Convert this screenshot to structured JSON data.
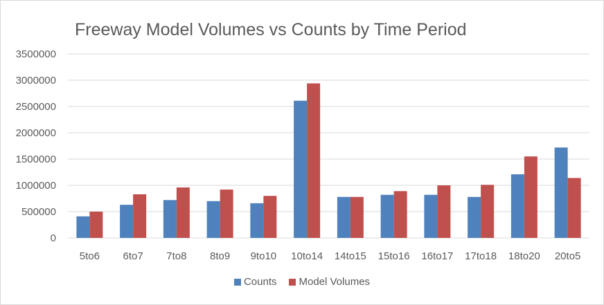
{
  "chart_data": {
    "type": "bar",
    "title": "Freeway Model Volumes vs Counts by Time Period",
    "xlabel": "",
    "ylabel": "",
    "categories": [
      "5to6",
      "6to7",
      "7to8",
      "8to9",
      "9to10",
      "10to14",
      "14to15",
      "15to16",
      "16to17",
      "17to18",
      "18to20",
      "20to5"
    ],
    "series": [
      {
        "name": "Counts",
        "color": "#4F81BD",
        "values": [
          410000,
          630000,
          720000,
          700000,
          660000,
          2610000,
          780000,
          820000,
          820000,
          780000,
          1210000,
          1720000
        ]
      },
      {
        "name": "Model Volumes",
        "color": "#C0504D",
        "values": [
          500000,
          830000,
          960000,
          920000,
          800000,
          2940000,
          780000,
          890000,
          1000000,
          1010000,
          1550000,
          1140000
        ]
      }
    ],
    "ylim": [
      0,
      3500000
    ],
    "yticks": [
      "0",
      "500000",
      "1000000",
      "1500000",
      "2000000",
      "2500000",
      "3000000",
      "3500000"
    ],
    "grid": true,
    "legend_position": "bottom"
  }
}
